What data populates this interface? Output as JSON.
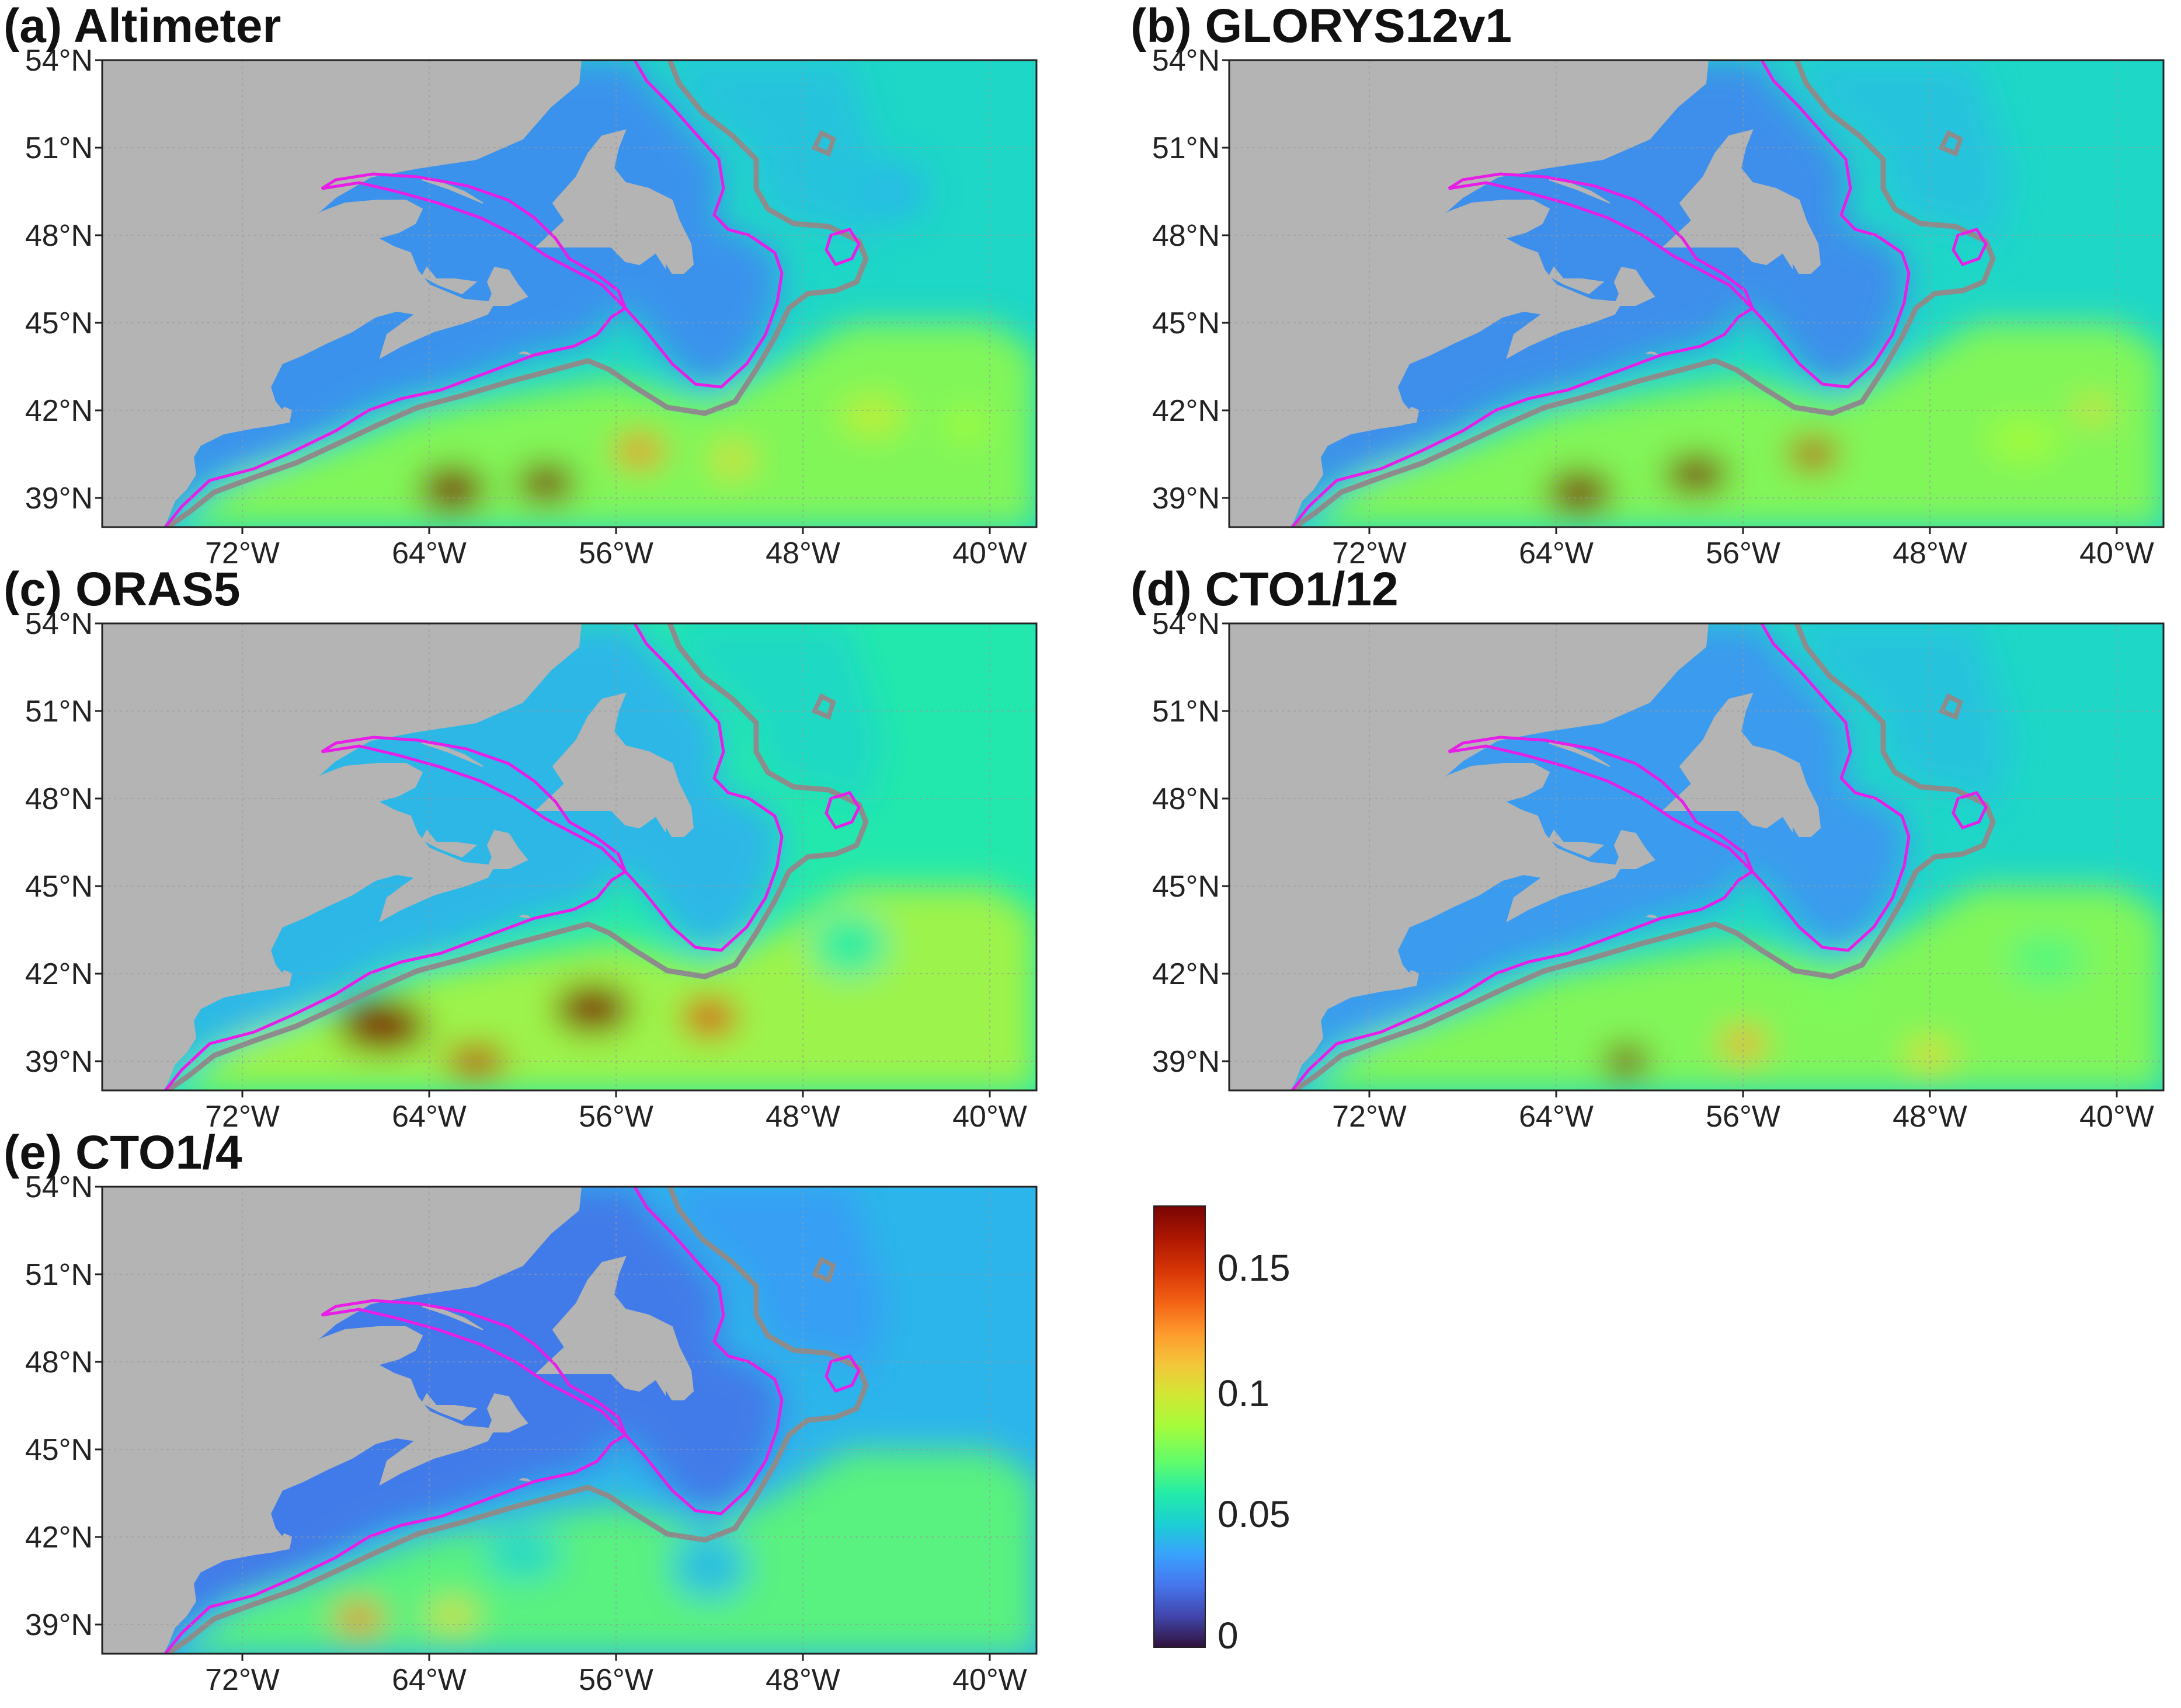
{
  "panels": [
    {
      "id": "a",
      "title": "(a) Altimeter"
    },
    {
      "id": "b",
      "title": "(b) GLORYS12v1"
    },
    {
      "id": "c",
      "title": "(c) ORAS5"
    },
    {
      "id": "d",
      "title": "(d) CTO1/12"
    },
    {
      "id": "e",
      "title": "(e) CTO1/4"
    }
  ],
  "axes": {
    "lat_labels": [
      "54°N",
      "51°N",
      "48°N",
      "45°N",
      "42°N",
      "39°N"
    ],
    "lon_labels": [
      "72°W",
      "64°W",
      "56°W",
      "48°W",
      "40°W"
    ]
  },
  "colorbar": {
    "tick_labels": [
      "0.15",
      "0.1",
      "0.05",
      "0"
    ],
    "colormap": "turbo"
  },
  "colors": {
    "land": "#b4b4b4",
    "contour_shelf": "#e81de8",
    "contour_deep": "#8c8c8c",
    "grid": "#9a9a9a"
  },
  "chart_data": {
    "type": "heatmap",
    "variable_range": [
      0,
      0.175
    ],
    "colorbar_ticks": [
      0,
      0.05,
      0.1,
      0.15
    ],
    "lon_range": [
      -78,
      -38
    ],
    "lat_range": [
      38,
      54
    ],
    "lon_ticks": [
      -72,
      -64,
      -56,
      -48,
      -40
    ],
    "lat_ticks": [
      39,
      42,
      45,
      48,
      51,
      54
    ],
    "grid": true,
    "panels": [
      "(a) Altimeter",
      "(b) GLORYS12v1",
      "(c) ORAS5",
      "(d) CTO1/12",
      "(e) CTO1/4"
    ]
  }
}
